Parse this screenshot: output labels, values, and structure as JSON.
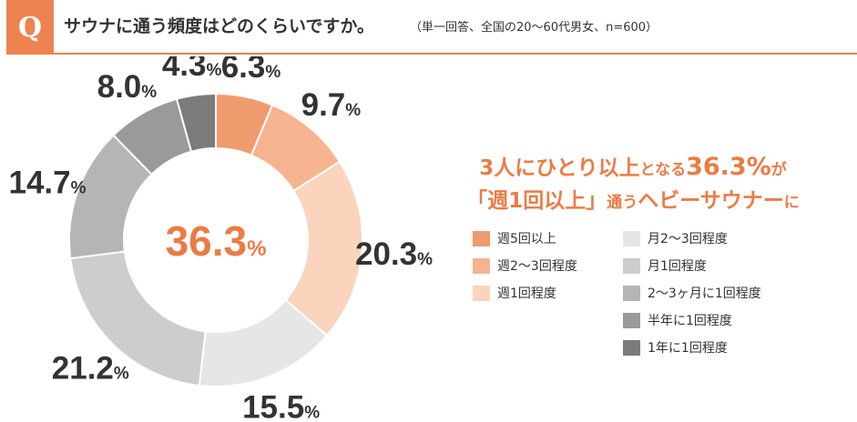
{
  "question": {
    "badge": "Q",
    "text": "サウナに通う頻度はどのくらいですか。",
    "note": "（単一回答、全国の20〜60代男女、n=600）"
  },
  "headline": {
    "line1_a": "3人にひとり以上",
    "line1_b": "となる",
    "line1_c": "36.3%",
    "line1_d": "が",
    "line2_a": "「週1回以上」",
    "line2_b": "通う",
    "line2_c": "ヘビーサウナー",
    "line2_d": "に"
  },
  "chart_data": {
    "type": "pie",
    "center_value": "36.3",
    "center_unit": "%",
    "value_unit": "%",
    "categories": [
      "週5回以上",
      "週2〜3回程度",
      "週1回程度",
      "月2〜3回程度",
      "月1回程度",
      "2〜3ヶ月に1回程度",
      "半年に1回程度",
      "1年に1回程度"
    ],
    "values": [
      6.3,
      9.7,
      20.3,
      15.5,
      21.2,
      14.7,
      8.0,
      4.3
    ],
    "labels": [
      "6.3",
      "9.7",
      "20.3",
      "15.5",
      "21.2",
      "14.7",
      "8.0",
      "4.3"
    ],
    "colors": [
      "#f09b6e",
      "#f5b48f",
      "#fad4bd",
      "#e6e6e6",
      "#cdcdcd",
      "#b5b5b5",
      "#9a9a9a",
      "#7b7b7b"
    ],
    "legend_placement": "right"
  }
}
